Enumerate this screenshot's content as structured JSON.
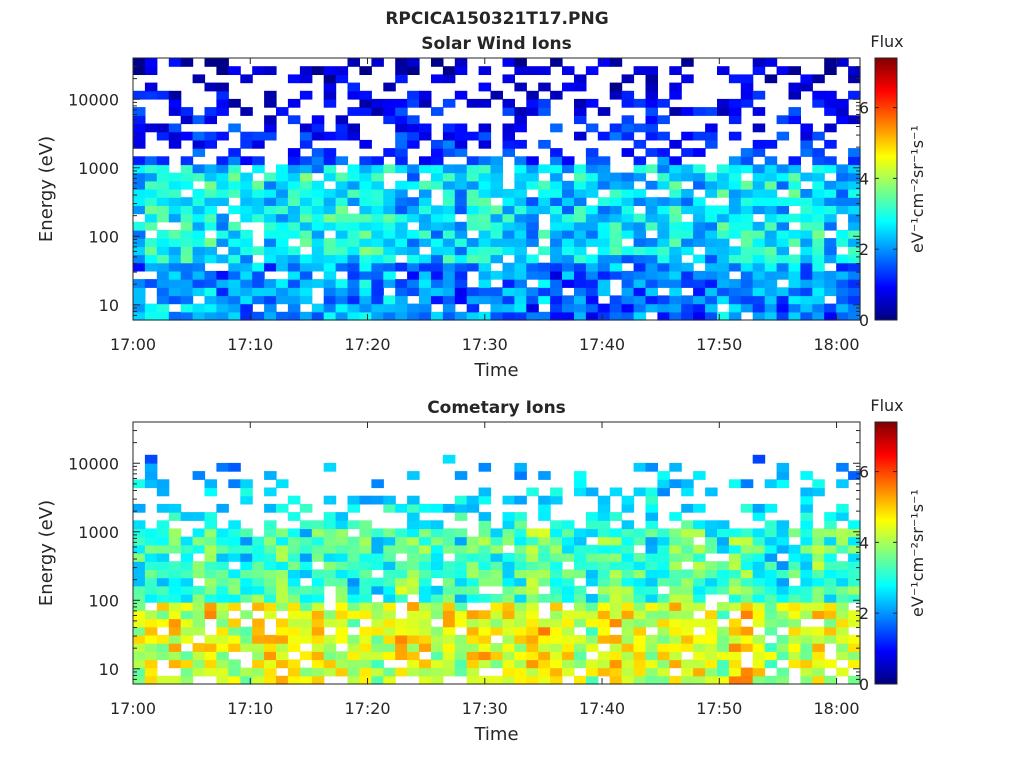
{
  "figure_title": "RPCICA150321T17.PNG",
  "chart_data": [
    {
      "type": "heatmap",
      "title": "Solar Wind Ions",
      "xlabel": "Time",
      "ylabel": "Energy (eV)",
      "x_range": [
        "17:00",
        "18:02"
      ],
      "x_ticks": [
        "17:00",
        "17:10",
        "17:20",
        "17:30",
        "17:40",
        "17:50",
        "18:00"
      ],
      "y_scale": "log",
      "y_range": [
        6,
        40000
      ],
      "y_ticks": [
        "10",
        "100",
        "1000",
        "10000"
      ],
      "colorbar": {
        "title": "Flux",
        "units": "eV⁻¹cm⁻²sr⁻¹s⁻¹",
        "range": [
          0,
          7.4
        ],
        "ticks": [
          "0",
          "2",
          "4",
          "6"
        ],
        "colormap": "jet"
      },
      "time_bins": 61,
      "energy_bins": 32,
      "profile": {
        "low_energy_band_eV": [
          6,
          40
        ],
        "main_band_eV": [
          40,
          1000
        ],
        "high_energy_sparse_eV": [
          1000,
          40000
        ],
        "typical_flux": 2.6,
        "peak_flux": 5.0
      }
    },
    {
      "type": "heatmap",
      "title": "Cometary Ions",
      "xlabel": "Time",
      "ylabel": "Energy (eV)",
      "x_range": [
        "17:00",
        "18:02"
      ],
      "x_ticks": [
        "17:00",
        "17:10",
        "17:20",
        "17:30",
        "17:40",
        "17:50",
        "18:00"
      ],
      "y_scale": "log",
      "y_range": [
        6,
        40000
      ],
      "y_ticks": [
        "10",
        "100",
        "1000",
        "10000"
      ],
      "colorbar": {
        "title": "Flux",
        "units": "eV⁻¹cm⁻²sr⁻¹s⁻¹",
        "range": [
          0,
          7.4
        ],
        "ticks": [
          "0",
          "2",
          "4",
          "6"
        ],
        "colormap": "jet"
      },
      "time_bins": 61,
      "energy_bins": 32,
      "profile": {
        "low_energy_band_eV": [
          6,
          100
        ],
        "main_band_eV": [
          100,
          1000
        ],
        "high_energy_sparse_eV": [
          1000,
          15000
        ],
        "typical_flux": 3.2,
        "peak_flux": 5.6
      }
    }
  ]
}
